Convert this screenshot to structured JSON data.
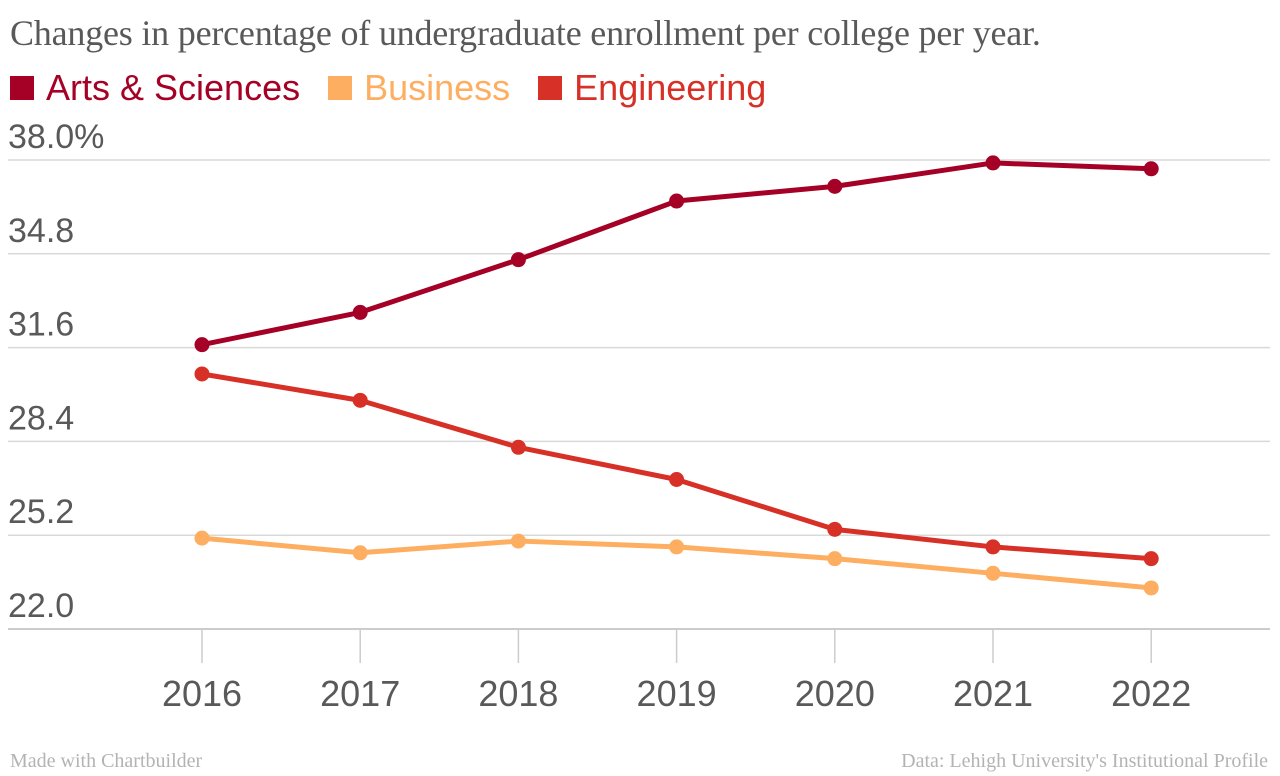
{
  "title": "Changes in percentage of undergraduate enrollment per college per year.",
  "legend": [
    {
      "label": "Arts & Sciences",
      "color": "#a50026"
    },
    {
      "label": "Business",
      "color": "#fdae61"
    },
    {
      "label": "Engineering",
      "color": "#d73027"
    }
  ],
  "footer": {
    "left": "Made with Chartbuilder",
    "right": "Data: Lehigh University's Institutional Profile"
  },
  "chart_data": {
    "type": "line",
    "title": "Changes in percentage of undergraduate enrollment per college per year.",
    "xlabel": "",
    "ylabel": "",
    "categories": [
      "2016",
      "2017",
      "2018",
      "2019",
      "2020",
      "2021",
      "2022"
    ],
    "ylim": [
      22.0,
      38.0
    ],
    "yticks": [
      22.0,
      25.2,
      28.4,
      31.6,
      34.8,
      38.0
    ],
    "ytick_labels": [
      "22.0",
      "25.2",
      "28.4",
      "31.6",
      "34.8",
      "38.0%"
    ],
    "grid": "horizontal",
    "legend_position": "top-left",
    "series": [
      {
        "name": "Arts & Sciences",
        "color": "#a50026",
        "values": [
          31.7,
          32.8,
          34.6,
          36.6,
          37.1,
          37.9,
          37.7
        ]
      },
      {
        "name": "Business",
        "color": "#fdae61",
        "values": [
          25.1,
          24.6,
          25.0,
          24.8,
          24.4,
          23.9,
          23.4
        ]
      },
      {
        "name": "Engineering",
        "color": "#d73027",
        "values": [
          30.7,
          29.8,
          28.2,
          27.1,
          25.4,
          24.8,
          24.4
        ]
      }
    ]
  }
}
